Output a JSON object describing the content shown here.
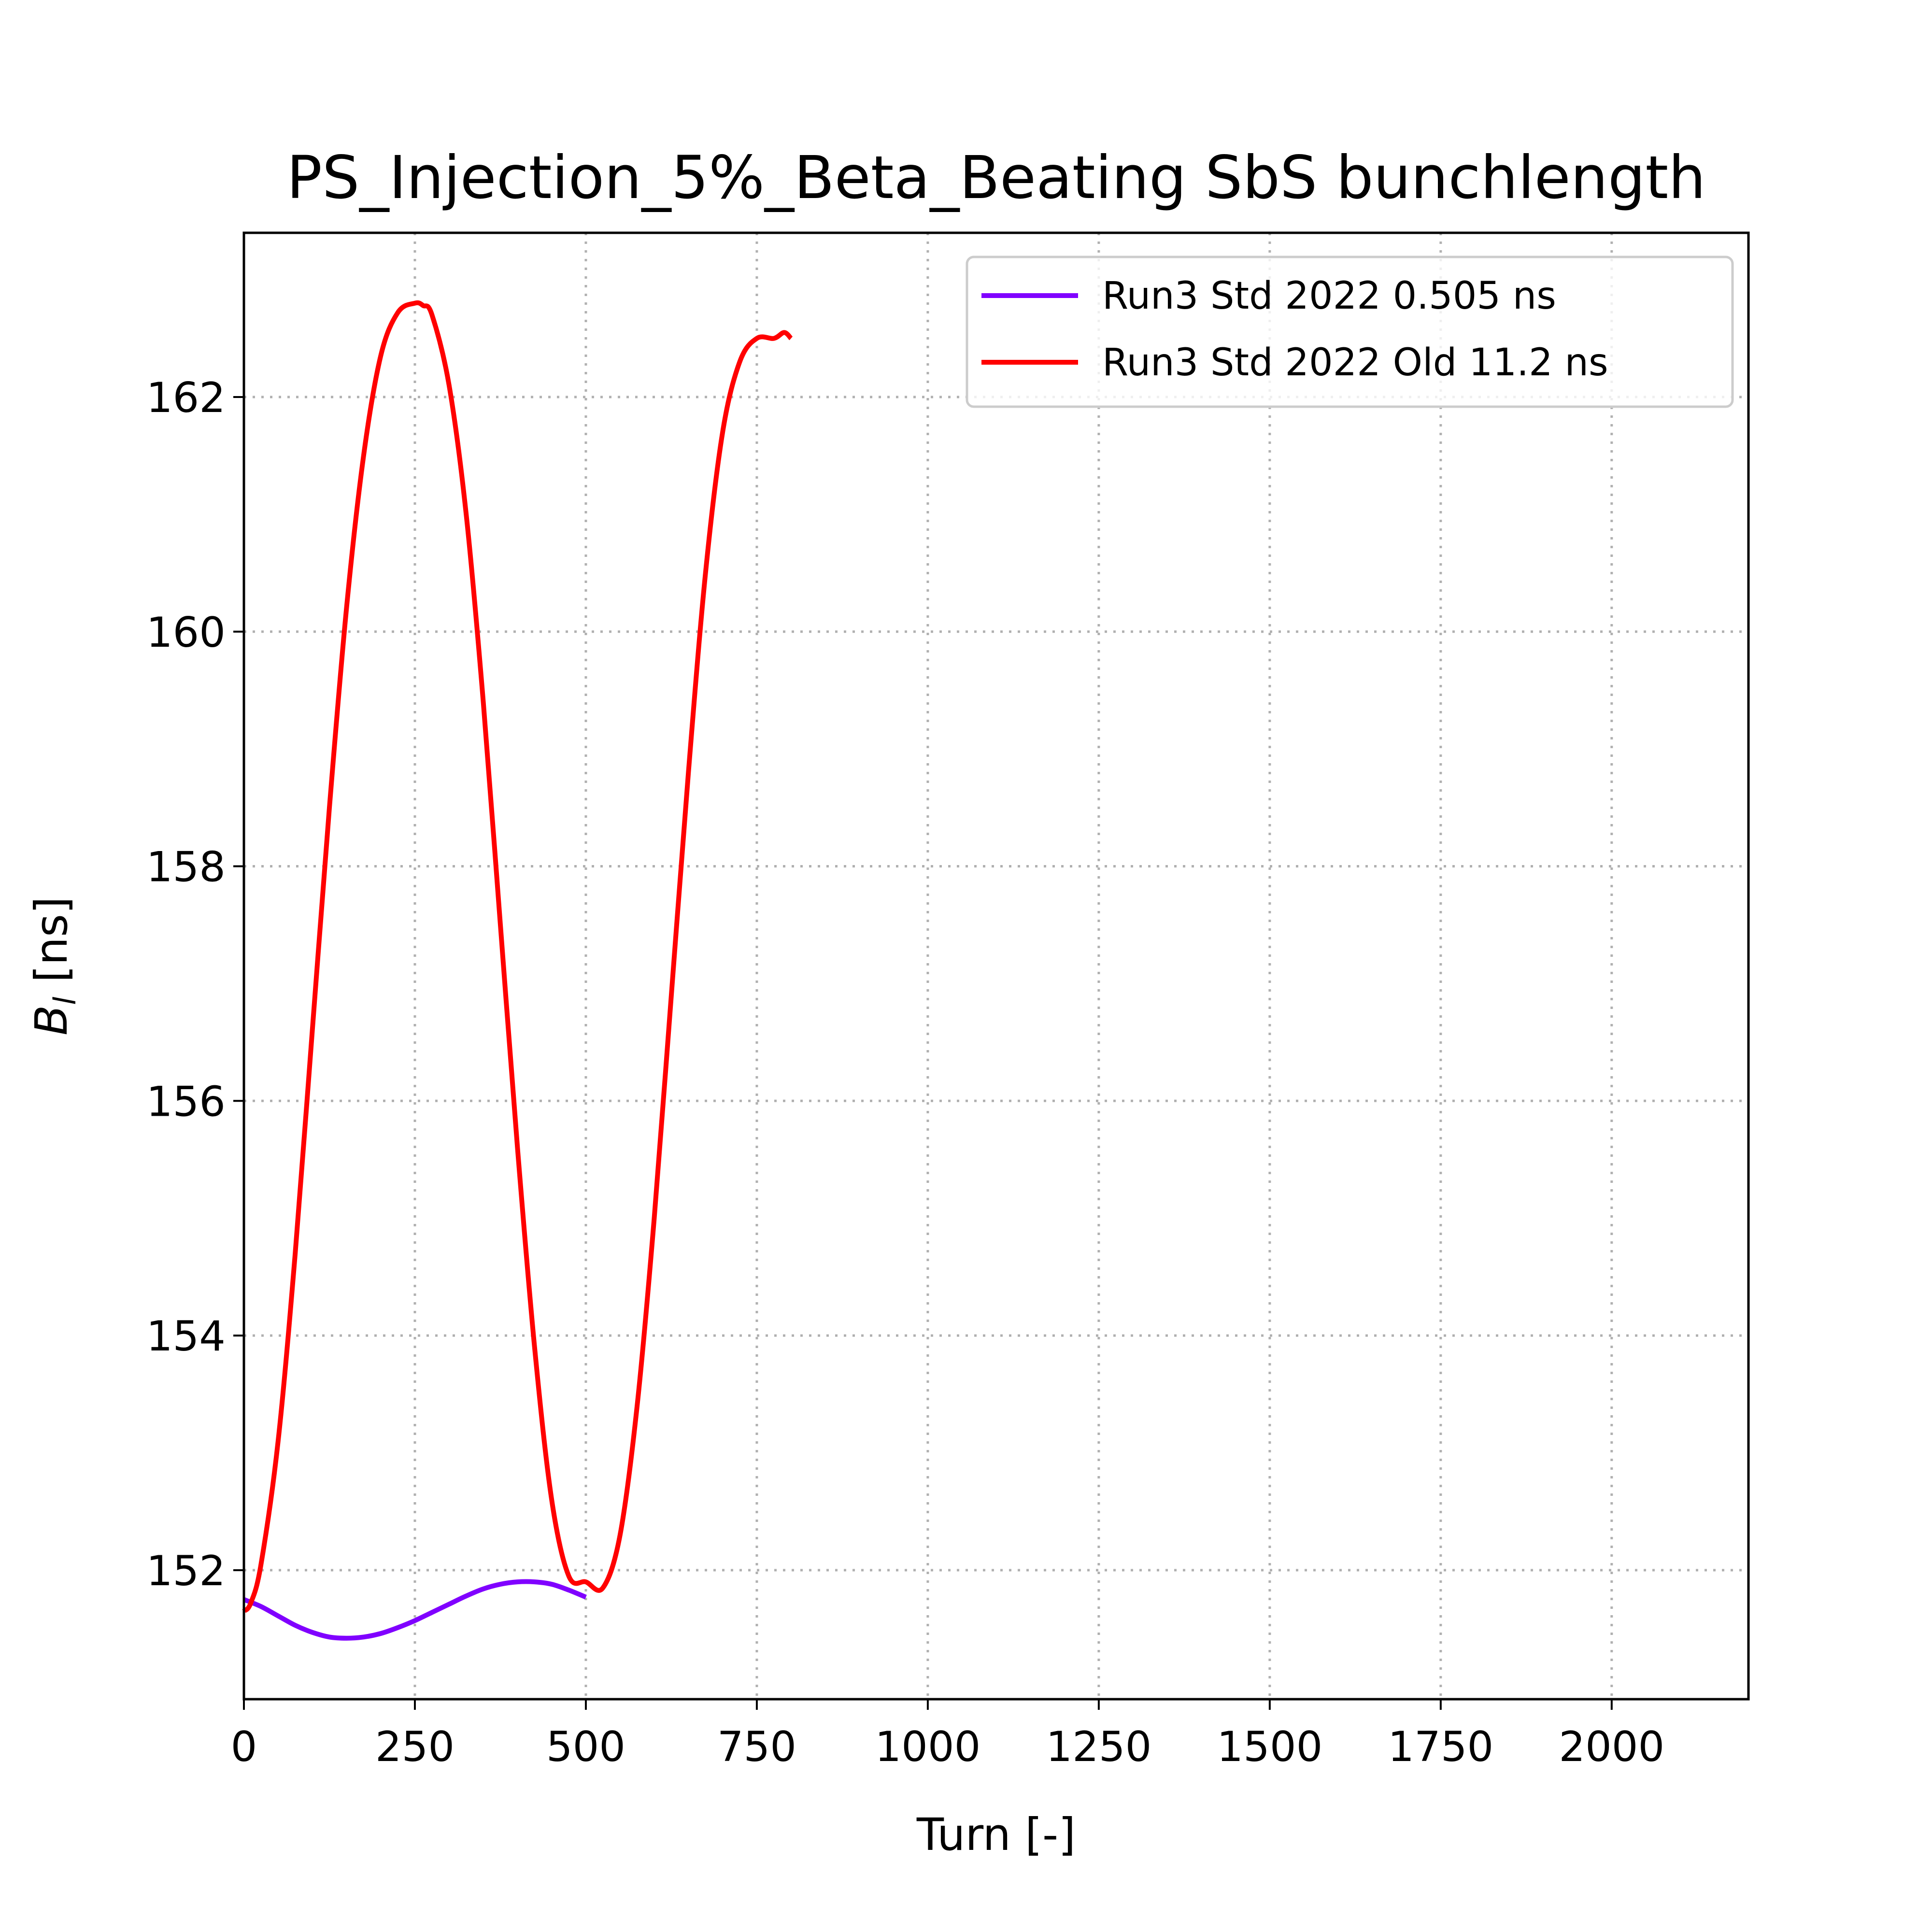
{
  "chart_data": {
    "type": "line",
    "title": "PS_Injection_5%_Beta_Beating SbS bunchlength",
    "xlabel": "Turn [-]",
    "ylabel_main": "B",
    "ylabel_sub": "l",
    "ylabel_unit": " [ns]",
    "xlim": [
      0,
      2200
    ],
    "ylim": [
      150.9,
      163.4
    ],
    "xticks": [
      0,
      250,
      500,
      750,
      1000,
      1250,
      1500,
      1750,
      2000
    ],
    "xtick_labels": [
      "0",
      "250",
      "500",
      "750",
      "1000",
      "1250",
      "1500",
      "1750",
      "2000"
    ],
    "yticks": [
      152,
      154,
      156,
      158,
      160,
      162
    ],
    "ytick_labels": [
      "152",
      "154",
      "156",
      "158",
      "160",
      "162"
    ],
    "grid": true,
    "legend_position": "top-right",
    "series": [
      {
        "name": "Run3 Std 2022 0.505 ns",
        "color": "#8000ff",
        "x": [
          0,
          25,
          50,
          75,
          100,
          125,
          150,
          175,
          200,
          225,
          250,
          275,
          300,
          325,
          350,
          375,
          400,
          425,
          450,
          475,
          500
        ],
        "y": [
          151.75,
          151.69,
          151.61,
          151.53,
          151.47,
          151.43,
          151.42,
          151.43,
          151.46,
          151.51,
          151.57,
          151.64,
          151.71,
          151.78,
          151.84,
          151.88,
          151.9,
          151.9,
          151.88,
          151.83,
          151.77
        ]
      },
      {
        "name": "Run3 Std 2022 Old 11.2 ns",
        "color": "#ff0000",
        "x": [
          0,
          10,
          25,
          50,
          75,
          100,
          125,
          150,
          175,
          200,
          225,
          250,
          262,
          275,
          300,
          325,
          350,
          375,
          400,
          425,
          450,
          475,
          500,
          525,
          550,
          575,
          600,
          625,
          650,
          675,
          700,
          725,
          750,
          775,
          790,
          800
        ],
        "y": [
          151.65,
          151.72,
          152.05,
          153.1,
          154.7,
          156.6,
          158.5,
          160.2,
          161.5,
          162.35,
          162.72,
          162.8,
          162.78,
          162.7,
          162.1,
          161.0,
          159.4,
          157.5,
          155.6,
          153.9,
          152.6,
          151.95,
          151.9,
          151.85,
          152.3,
          153.4,
          155.0,
          156.9,
          158.8,
          160.5,
          161.7,
          162.3,
          162.5,
          162.5,
          162.55,
          162.5
        ]
      }
    ]
  }
}
